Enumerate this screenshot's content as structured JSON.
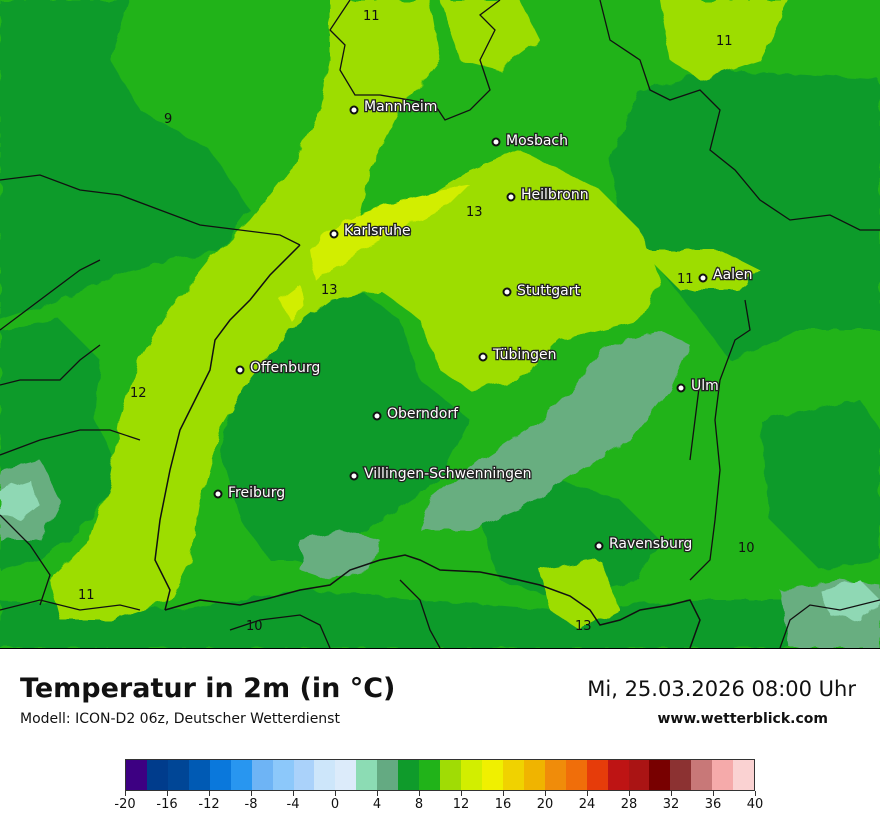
{
  "map": {
    "colors": {
      "c8": "#0f9b2b",
      "c10": "#21b319",
      "c12": "#9ddd06",
      "c14": "#d2ee00",
      "c6": "#68ae80",
      "c4": "#8fd8b4",
      "border": "#111111"
    },
    "cities": [
      {
        "name": "Mannheim"
      },
      {
        "name": "Mosbach"
      },
      {
        "name": "Heilbronn"
      },
      {
        "name": "Karlsruhe"
      },
      {
        "name": "Aalen"
      },
      {
        "name": "Stuttgart"
      },
      {
        "name": "Offenburg"
      },
      {
        "name": "Tübingen"
      },
      {
        "name": "Ulm"
      },
      {
        "name": "Oberndorf"
      },
      {
        "name": "Villingen-Schwenningen"
      },
      {
        "name": "Freiburg"
      },
      {
        "name": "Ravensburg"
      }
    ],
    "isolabels": [
      "11",
      "11",
      "9",
      "13",
      "13",
      "11",
      "12",
      "10",
      "11",
      "10",
      "13"
    ]
  },
  "info": {
    "title": "Temperatur in 2m (in °C)",
    "model": "Modell: ICON-D2 06z, Deutscher Wetterdienst",
    "datetime": "Mi, 25.03.2026 08:00 Uhr",
    "website": "www.wetterblick.com"
  },
  "legend": {
    "colors": [
      "#3d0082",
      "#003c8c",
      "#004696",
      "#005ab4",
      "#0a78dc",
      "#2896f0",
      "#6eb4f5",
      "#8cc8fa",
      "#aad2fa",
      "#cde6fa",
      "#dcebfa",
      "#8cdcb4",
      "#64aa82",
      "#0f9b2b",
      "#21b319",
      "#a0dc05",
      "#d2ee00",
      "#f0f000",
      "#f0d200",
      "#f0b400",
      "#f08c0a",
      "#f06e0a",
      "#e63c0a",
      "#be1414",
      "#aa1414",
      "#780000",
      "#8c3232",
      "#c87878",
      "#f5aaaa",
      "#fad2d2"
    ],
    "labels": [
      "-20",
      "-16",
      "-12",
      "-8",
      "-4",
      "0",
      "4",
      "8",
      "12",
      "16",
      "20",
      "24",
      "28",
      "32",
      "36",
      "40"
    ]
  }
}
